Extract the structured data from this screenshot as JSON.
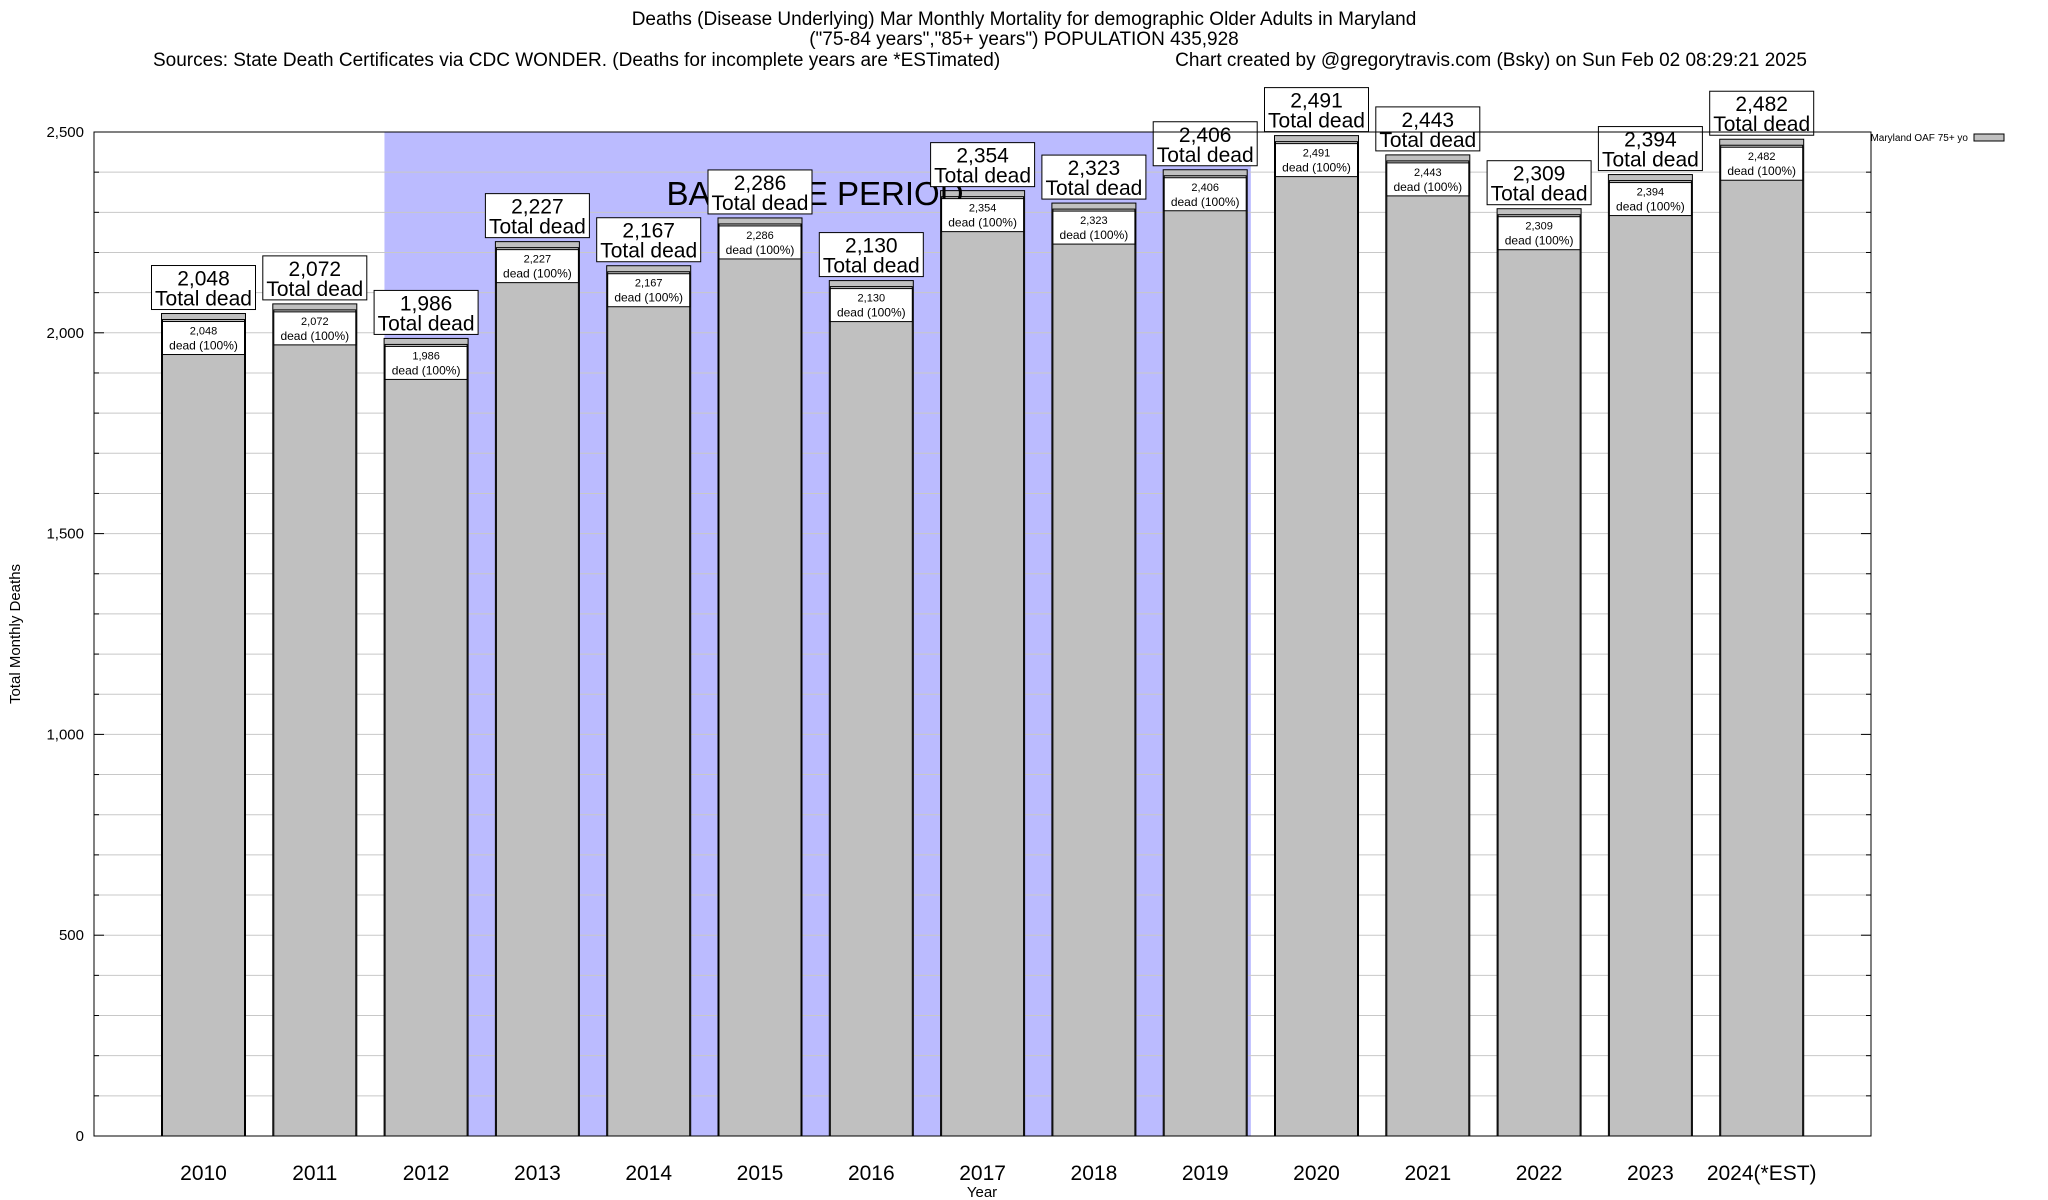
{
  "title": {
    "line1": "Deaths (Disease Underlying) Mar Monthly Mortality for demographic Older Adults in Maryland",
    "line2": "(\"75-84 years\",\"85+ years\") POPULATION 435,928",
    "sources": "Sources: State Death Certificates via CDC WONDER. (Deaths for incomplete years are *ESTimated)",
    "credit": "Chart created by @gregorytravis.com (Bsky) on Sun Feb 02 08:29:21 2025"
  },
  "colors": {
    "bar_fill": "#c0c0c0",
    "baseline_band": "#bbbbff",
    "grid": "#c8c8c8"
  },
  "chart_data": {
    "type": "bar",
    "categories": [
      "2010",
      "2011",
      "2012",
      "2013",
      "2014",
      "2015",
      "2016",
      "2017",
      "2018",
      "2019",
      "2020",
      "2021",
      "2022",
      "2023",
      "2024(*EST)"
    ],
    "series": [
      {
        "name": "Maryland OAF 75+ yo",
        "values": [
          2048,
          2072,
          1986,
          2227,
          2167,
          2286,
          2130,
          2354,
          2323,
          2406,
          2491,
          2443,
          2309,
          2394,
          2482
        ]
      }
    ],
    "value_labels": [
      "2,048",
      "2,072",
      "1,986",
      "2,227",
      "2,167",
      "2,286",
      "2,130",
      "2,354",
      "2,323",
      "2,406",
      "2,491",
      "2,443",
      "2,309",
      "2,394",
      "2,482"
    ],
    "total_label": "Total dead",
    "segment_label": "dead (100%)",
    "xlabel": "Year",
    "ylabel": "Total Monthly Deaths",
    "ylim": [
      0,
      2500
    ],
    "yticks": [
      0,
      500,
      1000,
      1500,
      2000,
      2500
    ],
    "ytick_labels": [
      "0",
      "500",
      "1,000",
      "1,500",
      "2,000",
      "2,500"
    ],
    "baseline_period": {
      "label": "BASELINE PERIOD",
      "from": "2012",
      "to": "2019"
    },
    "legend": {
      "position": "top-right",
      "entries": [
        "Maryland OAF 75+ yo"
      ]
    },
    "grid": true
  }
}
